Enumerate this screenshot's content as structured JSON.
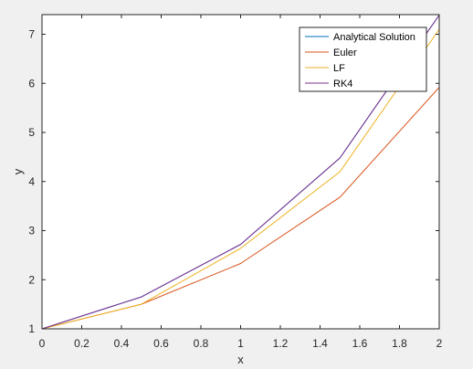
{
  "chart_data": {
    "type": "line",
    "xlabel": "x",
    "ylabel": "y",
    "xlim": [
      0,
      2
    ],
    "ylim": [
      1,
      7.4
    ],
    "x_ticks": [
      0,
      0.2,
      0.4,
      0.6,
      0.8,
      1,
      1.2,
      1.4,
      1.6,
      1.8,
      2
    ],
    "x_tick_labels": [
      "0",
      "0.2",
      "0.4",
      "0.6",
      "0.8",
      "1",
      "1.2",
      "1.4",
      "1.6",
      "1.8",
      "2"
    ],
    "y_ticks": [
      1,
      2,
      3,
      4,
      5,
      6,
      7
    ],
    "y_tick_labels": [
      "1",
      "2",
      "3",
      "4",
      "5",
      "6",
      "7"
    ],
    "grid": false,
    "legend_position": "top-right",
    "series": [
      {
        "name": "Analytical Solution",
        "color": "#0072bd",
        "x": [
          0,
          0.5,
          1,
          1.5,
          2
        ],
        "y": [
          1,
          1.65,
          2.72,
          4.48,
          7.39
        ]
      },
      {
        "name": "Euler",
        "color": "#d95319",
        "x": [
          0,
          0.5,
          1,
          1.5,
          2
        ],
        "y": [
          1,
          1.5,
          2.33,
          3.68,
          5.92
        ]
      },
      {
        "name": "LF",
        "color": "#edb120",
        "x": [
          0,
          0.5,
          1,
          1.5,
          2
        ],
        "y": [
          1,
          1.5,
          2.64,
          4.2,
          7.1
        ]
      },
      {
        "name": "RK4",
        "color": "#7e2f8e",
        "x": [
          0,
          0.5,
          1,
          1.5,
          2
        ],
        "y": [
          1,
          1.65,
          2.72,
          4.48,
          7.39
        ]
      }
    ]
  }
}
